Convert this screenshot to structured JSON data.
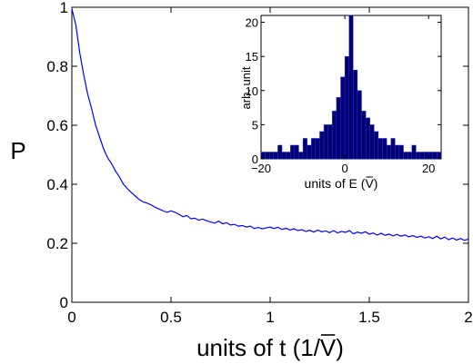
{
  "chart_data": [
    {
      "type": "line",
      "title": "",
      "xlabel": "units of t (1/V)",
      "ylabel": "P",
      "xlim": [
        0,
        2
      ],
      "ylim": [
        0,
        1
      ],
      "xticks": [
        0,
        0.5,
        1,
        1.5,
        2
      ],
      "xtick_labels": [
        "0",
        "0.5",
        "1",
        "1.5",
        "2"
      ],
      "yticks": [
        0,
        0.2,
        0.4,
        0.6,
        0.8,
        1
      ],
      "ytick_labels": [
        "0",
        "0.2",
        "0.4",
        "0.6",
        "0.8",
        "1"
      ],
      "grid": false,
      "line_color": "#0000ff",
      "series": [
        {
          "x": [
            0,
            0.02,
            0.04,
            0.06,
            0.08,
            0.1,
            0.12,
            0.14,
            0.16,
            0.18,
            0.2,
            0.22,
            0.24,
            0.26,
            0.28,
            0.3,
            0.32,
            0.34,
            0.36,
            0.38,
            0.4,
            0.42,
            0.44,
            0.46,
            0.48,
            0.5,
            0.52,
            0.54,
            0.56,
            0.58,
            0.6,
            0.62,
            0.64,
            0.66,
            0.68,
            0.7,
            0.72,
            0.74,
            0.76,
            0.78,
            0.8,
            0.82,
            0.84,
            0.86,
            0.88,
            0.9,
            0.92,
            0.94,
            0.96,
            0.98,
            1.0,
            1.02,
            1.04,
            1.06,
            1.08,
            1.1,
            1.12,
            1.14,
            1.16,
            1.18,
            1.2,
            1.22,
            1.24,
            1.26,
            1.28,
            1.3,
            1.32,
            1.34,
            1.36,
            1.38,
            1.4,
            1.42,
            1.44,
            1.46,
            1.48,
            1.5,
            1.52,
            1.54,
            1.56,
            1.58,
            1.6,
            1.62,
            1.64,
            1.66,
            1.68,
            1.7,
            1.72,
            1.74,
            1.76,
            1.78,
            1.8,
            1.82,
            1.84,
            1.86,
            1.88,
            1.9,
            1.92,
            1.94,
            1.96,
            1.98,
            2.0
          ],
          "y": [
            0.995,
            0.94,
            0.845,
            0.77,
            0.705,
            0.655,
            0.6,
            0.56,
            0.52,
            0.49,
            0.47,
            0.445,
            0.425,
            0.4,
            0.385,
            0.372,
            0.36,
            0.348,
            0.34,
            0.336,
            0.33,
            0.322,
            0.316,
            0.31,
            0.305,
            0.31,
            0.305,
            0.298,
            0.29,
            0.294,
            0.283,
            0.285,
            0.278,
            0.282,
            0.276,
            0.272,
            0.268,
            0.275,
            0.266,
            0.27,
            0.262,
            0.264,
            0.258,
            0.26,
            0.255,
            0.258,
            0.25,
            0.254,
            0.249,
            0.252,
            0.255,
            0.25,
            0.254,
            0.247,
            0.251,
            0.245,
            0.249,
            0.243,
            0.246,
            0.24,
            0.244,
            0.238,
            0.245,
            0.239,
            0.242,
            0.236,
            0.243,
            0.235,
            0.24,
            0.237,
            0.243,
            0.232,
            0.238,
            0.234,
            0.239,
            0.231,
            0.235,
            0.228,
            0.234,
            0.227,
            0.231,
            0.225,
            0.23,
            0.224,
            0.228,
            0.222,
            0.226,
            0.22,
            0.224,
            0.218,
            0.222,
            0.216,
            0.224,
            0.215,
            0.221,
            0.212,
            0.218,
            0.211,
            0.216,
            0.21,
            0.214
          ]
        }
      ]
    },
    {
      "type": "bar",
      "title": "",
      "xlabel": "units of E (V)",
      "ylabel": "arb. unit",
      "xlim": [
        -20,
        23
      ],
      "ylim": [
        0,
        21
      ],
      "xticks": [
        -20,
        0,
        20
      ],
      "xtick_labels": [
        "−20",
        "0",
        "20"
      ],
      "yticks": [
        0,
        5,
        10,
        15,
        20
      ],
      "ytick_labels": [
        "0",
        "5",
        "10",
        "15",
        "20"
      ],
      "bar_color": "#00006e",
      "edge_color": "#2f2fff",
      "bin_width": 1,
      "bin_starts": [
        -20,
        -19,
        -18,
        -17,
        -16,
        -15,
        -14,
        -13,
        -12,
        -11,
        -10,
        -9,
        -8,
        -7,
        -6,
        -5,
        -4,
        -3,
        -2,
        -1,
        0,
        1,
        2,
        3,
        4,
        5,
        6,
        7,
        8,
        9,
        10,
        11,
        12,
        13,
        14,
        15,
        16,
        17,
        18,
        19,
        20,
        21,
        22
      ],
      "values": [
        1,
        1,
        1,
        1,
        2,
        1,
        1,
        2,
        2,
        1,
        3,
        2,
        3,
        3,
        4,
        5,
        5,
        7,
        9,
        12,
        15,
        21,
        13,
        10,
        7,
        6,
        5,
        4,
        3,
        3,
        2,
        3,
        2,
        2,
        1,
        1,
        2,
        1,
        1,
        1,
        1,
        1,
        1
      ]
    }
  ]
}
